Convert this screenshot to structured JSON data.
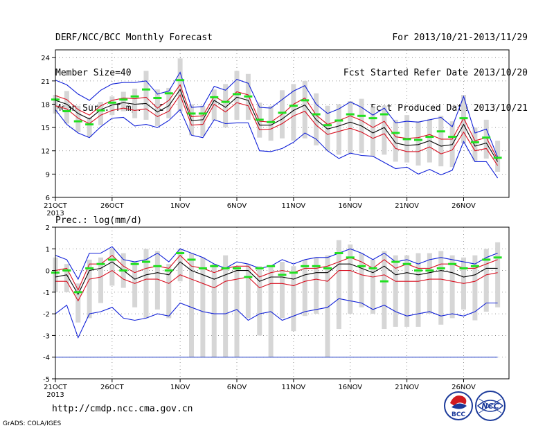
{
  "header": {
    "left": [
      "DERF/NCC/BCC Monthly Forecast",
      "Member Size=40",
      "Mean Surf. Temp.: °C"
    ],
    "right": [
      "For 2013/10/21-2013/11/29",
      "Fcst Started Refer Date 2013/10/20",
      "Fcst Produced Date 2013/10/21"
    ]
  },
  "footer": {
    "url": "http://cmdp.ncc.cma.gov.cn",
    "credit": "GrADS: COLA/IGES",
    "logos": [
      "BCC",
      "NCC"
    ]
  },
  "colors": {
    "mean": "#000000",
    "quartile": "#d81020",
    "minmax": "#1020d8",
    "ensemble_box": "#d6d6d6",
    "median": "#20e020",
    "floor_line": "#1030c0"
  },
  "chart_data": [
    {
      "type": "line",
      "title": "Mean Surf. Temp.: °C",
      "x_tick_labels": [
        "21OCT",
        "26OCT",
        "1NOV",
        "6NOV",
        "11NOV",
        "16NOV",
        "21NOV",
        "26NOV"
      ],
      "x_tick_sublabel": "2013",
      "x_tick_days": [
        1,
        6,
        12,
        17,
        22,
        27,
        32,
        37
      ],
      "ylim": [
        6,
        25
      ],
      "yticks": [
        6,
        9,
        12,
        15,
        18,
        21,
        24
      ],
      "grid": true,
      "days": [
        1,
        2,
        3,
        4,
        5,
        6,
        7,
        8,
        9,
        10,
        11,
        12,
        13,
        14,
        15,
        16,
        17,
        18,
        19,
        20,
        21,
        22,
        23,
        24,
        25,
        26,
        27,
        28,
        29,
        30,
        31,
        32,
        33,
        34,
        35,
        36,
        37,
        38,
        39,
        40
      ],
      "series": [
        {
          "role": "max",
          "values": [
            21.1,
            20.5,
            19.3,
            18.5,
            19.8,
            20.6,
            20.8,
            20.8,
            21.0,
            19.3,
            19.7,
            22.1,
            17.6,
            17.7,
            20.3,
            19.8,
            21.2,
            20.7,
            17.6,
            17.5,
            18.6,
            19.7,
            20.4,
            18.0,
            16.8,
            17.4,
            18.3,
            17.6,
            16.6,
            17.5,
            15.6,
            15.8,
            15.7,
            16.0,
            16.3,
            15.1,
            19.0,
            14.3,
            14.8,
            11.2
          ]
        },
        {
          "role": "q3",
          "values": [
            19.1,
            18.6,
            17.3,
            16.6,
            17.8,
            18.5,
            18.8,
            18.7,
            18.9,
            17.5,
            18.5,
            20.5,
            16.4,
            16.5,
            19.0,
            18.2,
            19.6,
            19.2,
            15.8,
            15.7,
            16.7,
            18.0,
            18.8,
            16.6,
            15.4,
            15.9,
            16.5,
            15.9,
            15.0,
            15.8,
            13.8,
            13.6,
            13.7,
            14.1,
            13.5,
            13.5,
            16.2,
            13.3,
            13.7,
            10.9
          ]
        },
        {
          "role": "mean",
          "values": [
            18.5,
            18.0,
            16.8,
            16.1,
            17.3,
            17.9,
            18.2,
            18.0,
            18.1,
            17.0,
            17.8,
            19.9,
            15.9,
            16.0,
            18.5,
            17.6,
            18.9,
            18.5,
            15.3,
            15.3,
            16.1,
            17.2,
            17.9,
            16.0,
            14.8,
            15.2,
            15.7,
            15.2,
            14.3,
            15.0,
            13.0,
            12.7,
            12.8,
            13.3,
            12.6,
            12.8,
            15.4,
            12.6,
            13.0,
            10.6
          ]
        },
        {
          "role": "q1",
          "values": [
            17.8,
            17.4,
            16.2,
            15.5,
            16.6,
            17.2,
            17.5,
            17.2,
            17.4,
            16.4,
            17.1,
            19.2,
            15.3,
            15.4,
            18.0,
            17.0,
            18.2,
            17.8,
            14.7,
            14.8,
            15.5,
            16.5,
            17.1,
            15.3,
            14.1,
            14.5,
            14.9,
            14.4,
            13.6,
            14.2,
            12.3,
            11.9,
            11.9,
            12.5,
            11.6,
            12.1,
            14.4,
            12.0,
            12.3,
            10.1
          ]
        },
        {
          "role": "min",
          "values": [
            17.3,
            15.4,
            14.3,
            13.7,
            15.1,
            16.2,
            16.3,
            15.2,
            15.4,
            15.0,
            15.9,
            17.3,
            14.0,
            13.7,
            16.0,
            15.5,
            15.6,
            15.6,
            12.0,
            11.9,
            12.3,
            13.1,
            14.3,
            13.5,
            12.0,
            11.0,
            11.7,
            11.4,
            11.3,
            10.5,
            9.7,
            9.9,
            9.0,
            9.6,
            8.9,
            9.5,
            13.2,
            10.6,
            10.6,
            8.5
          ]
        }
      ],
      "box_whisker": {
        "top": [
          19.2,
          19.7,
          17.8,
          16.3,
          18.3,
          19.0,
          19.6,
          20.0,
          22.3,
          19.9,
          20.1,
          23.9,
          18.0,
          17.8,
          19.9,
          20.6,
          22.3,
          21.9,
          18.2,
          17.8,
          19.8,
          20.6,
          21.0,
          19.4,
          17.8,
          18.0,
          18.4,
          18.7,
          17.6,
          17.8,
          16.0,
          16.6,
          15.8,
          16.1,
          16.5,
          15.8,
          19.2,
          15.0,
          16.0,
          13.3
        ],
        "bottom": [
          16.8,
          15.5,
          14.4,
          13.8,
          15.3,
          16.6,
          17.1,
          16.2,
          16.0,
          15.2,
          16.2,
          17.1,
          14.0,
          13.9,
          15.9,
          15.0,
          16.0,
          16.0,
          13.7,
          13.3,
          13.6,
          13.3,
          13.6,
          12.7,
          12.0,
          11.5,
          11.7,
          11.7,
          11.3,
          11.5,
          10.6,
          10.5,
          10.1,
          10.5,
          10.0,
          9.9,
          13.0,
          10.7,
          11.0,
          9.3
        ],
        "median": [
          18.6,
          17.1,
          15.8,
          15.4,
          17.2,
          18.2,
          18.6,
          19.0,
          19.9,
          18.8,
          19.4,
          21.1,
          16.8,
          16.8,
          18.9,
          18.3,
          19.3,
          19.0,
          16.0,
          15.7,
          16.9,
          17.8,
          18.5,
          16.7,
          15.3,
          15.9,
          16.7,
          16.5,
          16.2,
          16.7,
          14.3,
          13.5,
          13.4,
          13.8,
          14.5,
          13.8,
          16.2,
          13.1,
          13.7,
          11.1
        ]
      }
    },
    {
      "type": "line",
      "title": "Prec.: log(mm/d)",
      "x_tick_labels": [
        "21OCT",
        "26OCT",
        "1NOV",
        "6NOV",
        "11NOV",
        "16NOV",
        "21NOV",
        "26NOV"
      ],
      "x_tick_sublabel": "2013",
      "x_tick_days": [
        1,
        6,
        12,
        17,
        22,
        27,
        32,
        37
      ],
      "ylim": [
        -5,
        2
      ],
      "yticks": [
        -5,
        -4,
        -3,
        -2,
        -1,
        0,
        1,
        2
      ],
      "grid": true,
      "days": [
        1,
        2,
        3,
        4,
        5,
        6,
        7,
        8,
        9,
        10,
        11,
        12,
        13,
        14,
        15,
        16,
        17,
        18,
        19,
        20,
        21,
        22,
        23,
        24,
        25,
        26,
        27,
        28,
        29,
        30,
        31,
        32,
        33,
        34,
        35,
        36,
        37,
        38,
        39,
        40
      ],
      "series": [
        {
          "role": "max",
          "values": [
            0.7,
            0.5,
            -0.4,
            0.8,
            0.8,
            1.1,
            0.5,
            0.4,
            0.5,
            0.8,
            0.4,
            1.0,
            0.8,
            0.6,
            0.3,
            0.1,
            0.4,
            0.3,
            0.1,
            0.2,
            0.5,
            0.3,
            0.5,
            0.6,
            0.6,
            0.8,
            1.0,
            0.8,
            0.5,
            0.8,
            0.4,
            0.5,
            0.3,
            0.5,
            0.6,
            0.5,
            0.4,
            0.3,
            0.6,
            0.8
          ]
        },
        {
          "role": "q3",
          "values": [
            0.0,
            0.1,
            -0.9,
            0.3,
            0.3,
            0.7,
            0.2,
            -0.1,
            0.1,
            0.2,
            0.1,
            0.7,
            0.2,
            0.1,
            -0.1,
            0.1,
            0.2,
            0.2,
            -0.3,
            -0.1,
            0.0,
            -0.1,
            0.1,
            0.1,
            0.2,
            0.4,
            0.6,
            0.4,
            0.1,
            0.5,
            0.1,
            0.3,
            0.1,
            0.1,
            0.3,
            0.3,
            0.1,
            0.1,
            0.3,
            0.5
          ]
        },
        {
          "role": "mean",
          "values": [
            -0.3,
            -0.2,
            -1.1,
            0.0,
            0.1,
            0.4,
            0.0,
            -0.4,
            -0.2,
            -0.1,
            -0.2,
            0.4,
            0.0,
            -0.2,
            -0.4,
            -0.2,
            0.0,
            0.0,
            -0.5,
            -0.3,
            -0.3,
            -0.4,
            -0.2,
            -0.1,
            -0.1,
            0.3,
            0.3,
            0.1,
            -0.1,
            0.2,
            -0.2,
            -0.1,
            -0.2,
            -0.1,
            0.0,
            -0.1,
            -0.3,
            -0.2,
            0.1,
            0.1
          ]
        },
        {
          "role": "q1",
          "values": [
            -0.5,
            -0.5,
            -1.4,
            -0.4,
            -0.3,
            0.0,
            -0.4,
            -0.6,
            -0.4,
            -0.4,
            -0.6,
            -0.2,
            -0.4,
            -0.6,
            -0.8,
            -0.5,
            -0.4,
            -0.3,
            -0.8,
            -0.6,
            -0.6,
            -0.7,
            -0.5,
            -0.4,
            -0.5,
            0.0,
            0.0,
            -0.2,
            -0.3,
            -0.2,
            -0.5,
            -0.5,
            -0.5,
            -0.4,
            -0.4,
            -0.5,
            -0.6,
            -0.5,
            -0.2,
            -0.1
          ]
        },
        {
          "role": "min",
          "values": [
            -2.0,
            -1.6,
            -3.1,
            -2.0,
            -1.9,
            -1.7,
            -2.2,
            -2.3,
            -2.2,
            -2.0,
            -2.1,
            -1.5,
            -1.7,
            -1.9,
            -2.0,
            -2.0,
            -1.8,
            -2.3,
            -2.0,
            -1.9,
            -2.3,
            -2.1,
            -1.9,
            -1.8,
            -1.7,
            -1.3,
            -1.4,
            -1.5,
            -1.8,
            -1.6,
            -1.9,
            -2.1,
            -2.0,
            -1.9,
            -2.1,
            -2.0,
            -2.1,
            -1.9,
            -1.5,
            -1.5
          ]
        },
        {
          "role": "floor",
          "values": [
            -4,
            -4,
            -4,
            -4,
            -4,
            -4,
            -4,
            -4,
            -4,
            -4,
            -4,
            -4,
            -4,
            -4,
            -4,
            -4,
            -4,
            -4,
            -4,
            -4,
            -4,
            -4,
            -4,
            -4,
            -4,
            -4,
            -4,
            -4,
            -4,
            -4,
            -4,
            -4,
            -4,
            -4,
            -4,
            -4,
            -4,
            -4,
            -4,
            -4
          ]
        }
      ],
      "box_whisker": {
        "top": [
          0.6,
          0.3,
          -0.6,
          0.5,
          0.6,
          1.0,
          0.8,
          0.4,
          1.0,
          0.9,
          0.3,
          1.0,
          0.8,
          0.6,
          0.3,
          0.7,
          0.2,
          0.3,
          0.2,
          0.2,
          0.4,
          0.2,
          0.5,
          0.6,
          0.7,
          1.4,
          1.2,
          0.8,
          0.5,
          0.9,
          0.7,
          0.7,
          0.8,
          0.8,
          0.9,
          0.7,
          0.6,
          0.7,
          1.0,
          1.3
        ],
        "bottom": [
          -1.0,
          -1.0,
          -2.4,
          -2.2,
          -1.5,
          -0.7,
          -0.8,
          -1.7,
          -2.2,
          -1.8,
          -2.2,
          -0.5,
          -4.0,
          -4.0,
          -4.0,
          -4.0,
          -4.0,
          -2.2,
          -3.0,
          -4.0,
          -2.2,
          -2.8,
          -2.1,
          -2.0,
          -4.0,
          -2.7,
          -2.0,
          -1.7,
          -2.0,
          -2.7,
          -2.6,
          -2.6,
          -2.6,
          -2.0,
          -2.5,
          -2.2,
          -1.8,
          -2.3,
          -1.9,
          -1.7
        ],
        "median": [
          -0.1,
          0.0,
          -1.0,
          0.1,
          0.3,
          0.5,
          0.0,
          0.3,
          0.4,
          0.2,
          0.0,
          0.8,
          0.5,
          0.1,
          0.2,
          0.1,
          0.1,
          -0.3,
          0.1,
          0.2,
          -0.2,
          -0.1,
          0.2,
          0.2,
          0.1,
          0.8,
          0.6,
          0.2,
          0.1,
          -0.5,
          0.4,
          0.3,
          0.0,
          0.0,
          0.1,
          0.3,
          0.1,
          0.2,
          0.5,
          0.6
        ]
      }
    }
  ]
}
